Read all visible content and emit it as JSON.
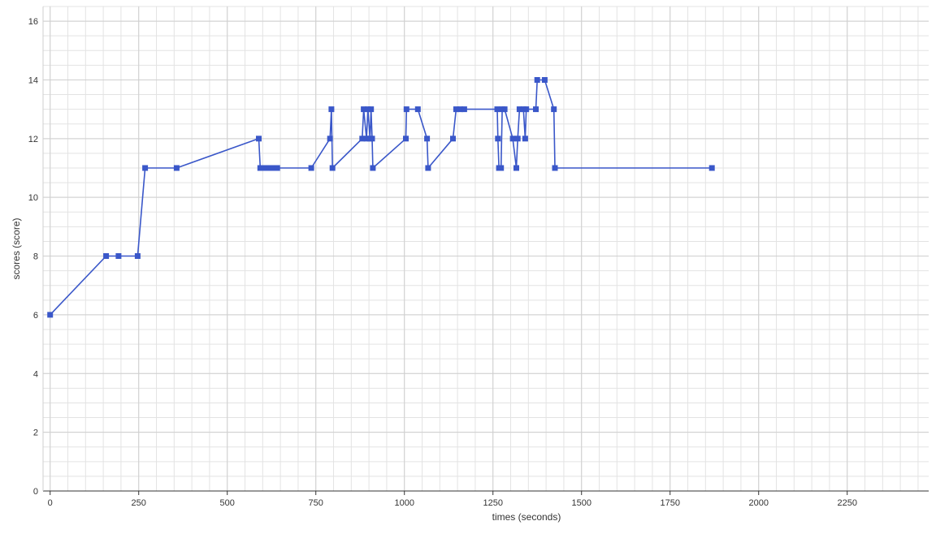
{
  "chart_data": {
    "type": "line",
    "title": "",
    "xlabel": "times (seconds)",
    "ylabel": "scores (score)",
    "xlim": [
      -20,
      2480
    ],
    "ylim": [
      0,
      16.5
    ],
    "x_ticks": [
      0,
      250,
      500,
      750,
      1000,
      1250,
      1500,
      1750,
      2000,
      2250
    ],
    "y_ticks": [
      0,
      2,
      4,
      6,
      8,
      10,
      12,
      14,
      16
    ],
    "x_minor_step": 50,
    "y_minor_step": 0.5,
    "grid": true,
    "legend": "none",
    "series": [
      {
        "color": "#3a57c9",
        "marker": "square",
        "points": [
          [
            0,
            6
          ],
          [
            158,
            8
          ],
          [
            193,
            8
          ],
          [
            247,
            8
          ],
          [
            268,
            11
          ],
          [
            357,
            11
          ],
          [
            589,
            12
          ],
          [
            593,
            11
          ],
          [
            608,
            11
          ],
          [
            617,
            11
          ],
          [
            625,
            11
          ],
          [
            634,
            11
          ],
          [
            641,
            11
          ],
          [
            737,
            11
          ],
          [
            790,
            12
          ],
          [
            794,
            13
          ],
          [
            797,
            11
          ],
          [
            881,
            12
          ],
          [
            885,
            13
          ],
          [
            893,
            12
          ],
          [
            897,
            13
          ],
          [
            903,
            12
          ],
          [
            906,
            13
          ],
          [
            909,
            12
          ],
          [
            911,
            11
          ],
          [
            1004,
            12
          ],
          [
            1006,
            13
          ],
          [
            1038,
            13
          ],
          [
            1064,
            12
          ],
          [
            1067,
            11
          ],
          [
            1137,
            12
          ],
          [
            1146,
            13
          ],
          [
            1158,
            13
          ],
          [
            1169,
            13
          ],
          [
            1262,
            13
          ],
          [
            1264,
            12
          ],
          [
            1267,
            11
          ],
          [
            1273,
            11
          ],
          [
            1276,
            13
          ],
          [
            1283,
            13
          ],
          [
            1306,
            12
          ],
          [
            1316,
            11
          ],
          [
            1320,
            12
          ],
          [
            1325,
            13
          ],
          [
            1336,
            13
          ],
          [
            1341,
            12
          ],
          [
            1344,
            13
          ],
          [
            1371,
            13
          ],
          [
            1375,
            14
          ],
          [
            1396,
            14
          ],
          [
            1422,
            13
          ],
          [
            1425,
            11
          ],
          [
            1868,
            11
          ]
        ]
      }
    ]
  }
}
